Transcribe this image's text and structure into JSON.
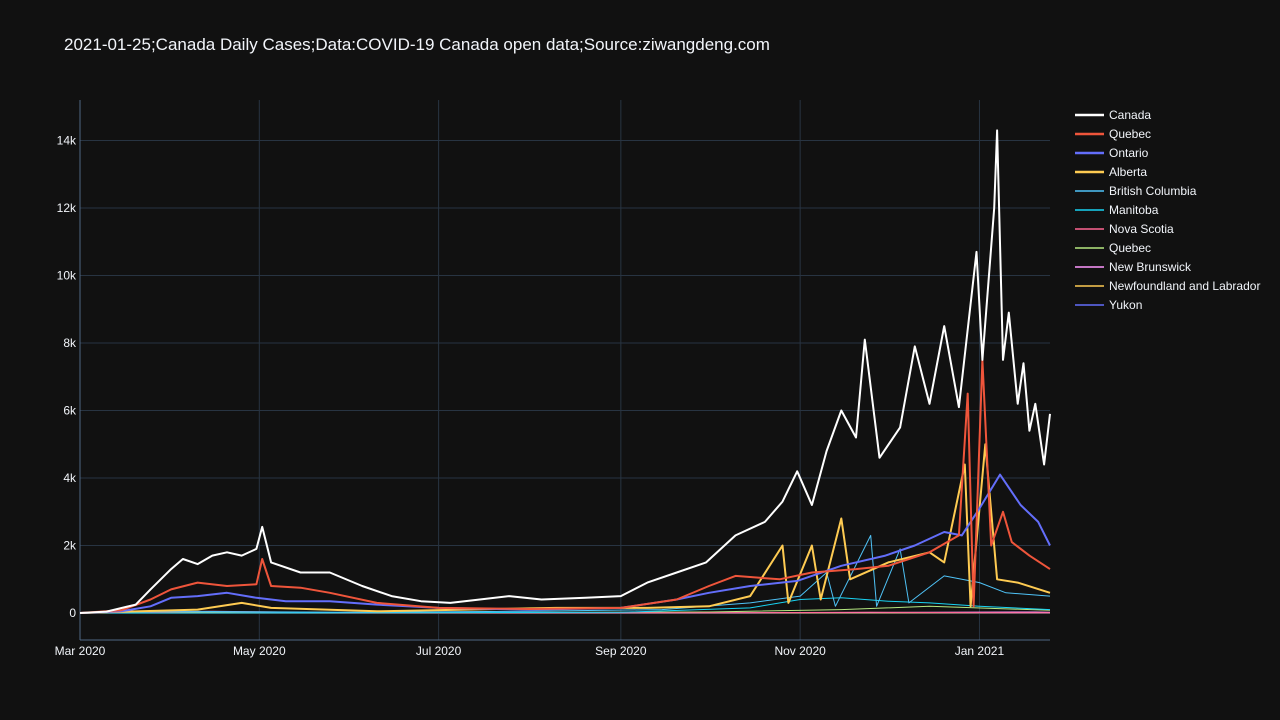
{
  "chart_data": {
    "type": "line",
    "title": "2021-01-25;Canada Daily Cases;Data:COVID-19 Canada open data;Source:ziwangdeng.com",
    "xlabel": "",
    "ylabel": "",
    "x_range": [
      "2020-03-01",
      "2021-01-25"
    ],
    "ylim": [
      -800,
      15200
    ],
    "x_ticks": [
      {
        "date": "2020-03-01",
        "label": "Mar 2020"
      },
      {
        "date": "2020-05-01",
        "label": "May 2020"
      },
      {
        "date": "2020-07-01",
        "label": "Jul 2020"
      },
      {
        "date": "2020-09-01",
        "label": "Sep 2020"
      },
      {
        "date": "2020-11-01",
        "label": "Nov 2020"
      },
      {
        "date": "2021-01-01",
        "label": "Jan 2021"
      }
    ],
    "y_ticks": [
      {
        "value": 0,
        "label": "0"
      },
      {
        "value": 2000,
        "label": "2k"
      },
      {
        "value": 4000,
        "label": "4k"
      },
      {
        "value": 6000,
        "label": "6k"
      },
      {
        "value": 8000,
        "label": "8k"
      },
      {
        "value": 10000,
        "label": "10k"
      },
      {
        "value": 12000,
        "label": "12k"
      },
      {
        "value": 14000,
        "label": "14k"
      }
    ],
    "grid": true,
    "legend_position": "right",
    "series": [
      {
        "name": "Canada",
        "color": "#ffffff",
        "width": 2,
        "points": [
          [
            "2020-03-01",
            0
          ],
          [
            "2020-03-10",
            40
          ],
          [
            "2020-03-20",
            250
          ],
          [
            "2020-03-25",
            700
          ],
          [
            "2020-04-01",
            1300
          ],
          [
            "2020-04-05",
            1600
          ],
          [
            "2020-04-10",
            1450
          ],
          [
            "2020-04-15",
            1700
          ],
          [
            "2020-04-20",
            1800
          ],
          [
            "2020-04-25",
            1700
          ],
          [
            "2020-04-30",
            1900
          ],
          [
            "2020-05-02",
            2550
          ],
          [
            "2020-05-05",
            1500
          ],
          [
            "2020-05-15",
            1200
          ],
          [
            "2020-05-25",
            1200
          ],
          [
            "2020-06-05",
            800
          ],
          [
            "2020-06-15",
            500
          ],
          [
            "2020-06-25",
            350
          ],
          [
            "2020-07-05",
            300
          ],
          [
            "2020-07-15",
            400
          ],
          [
            "2020-07-25",
            500
          ],
          [
            "2020-08-05",
            400
          ],
          [
            "2020-08-20",
            450
          ],
          [
            "2020-09-01",
            500
          ],
          [
            "2020-09-10",
            900
          ],
          [
            "2020-09-20",
            1200
          ],
          [
            "2020-09-30",
            1500
          ],
          [
            "2020-10-10",
            2300
          ],
          [
            "2020-10-20",
            2700
          ],
          [
            "2020-10-26",
            3300
          ],
          [
            "2020-10-31",
            4200
          ],
          [
            "2020-11-05",
            3200
          ],
          [
            "2020-11-10",
            4800
          ],
          [
            "2020-11-15",
            6000
          ],
          [
            "2020-11-20",
            5200
          ],
          [
            "2020-11-23",
            8100
          ],
          [
            "2020-11-28",
            4600
          ],
          [
            "2020-12-05",
            5500
          ],
          [
            "2020-12-10",
            7900
          ],
          [
            "2020-12-15",
            6200
          ],
          [
            "2020-12-20",
            8500
          ],
          [
            "2020-12-25",
            6100
          ],
          [
            "2020-12-31",
            10700
          ],
          [
            "2021-01-02",
            7500
          ],
          [
            "2021-01-06",
            12000
          ],
          [
            "2021-01-07",
            14300
          ],
          [
            "2021-01-09",
            7500
          ],
          [
            "2021-01-11",
            8900
          ],
          [
            "2021-01-14",
            6200
          ],
          [
            "2021-01-16",
            7400
          ],
          [
            "2021-01-18",
            5400
          ],
          [
            "2021-01-20",
            6200
          ],
          [
            "2021-01-23",
            4400
          ],
          [
            "2021-01-25",
            5900
          ]
        ]
      },
      {
        "name": "Quebec",
        "color": "#ef553b",
        "width": 2,
        "points": [
          [
            "2020-03-01",
            0
          ],
          [
            "2020-03-15",
            80
          ],
          [
            "2020-03-25",
            400
          ],
          [
            "2020-04-01",
            700
          ],
          [
            "2020-04-10",
            900
          ],
          [
            "2020-04-20",
            800
          ],
          [
            "2020-04-30",
            850
          ],
          [
            "2020-05-02",
            1600
          ],
          [
            "2020-05-05",
            800
          ],
          [
            "2020-05-15",
            750
          ],
          [
            "2020-05-25",
            600
          ],
          [
            "2020-06-10",
            300
          ],
          [
            "2020-07-01",
            150
          ],
          [
            "2020-08-01",
            120
          ],
          [
            "2020-09-01",
            150
          ],
          [
            "2020-09-20",
            400
          ],
          [
            "2020-10-01",
            800
          ],
          [
            "2020-10-10",
            1100
          ],
          [
            "2020-10-25",
            1000
          ],
          [
            "2020-11-05",
            1200
          ],
          [
            "2020-11-20",
            1300
          ],
          [
            "2020-12-01",
            1400
          ],
          [
            "2020-12-15",
            1800
          ],
          [
            "2020-12-25",
            2300
          ],
          [
            "2020-12-28",
            6500
          ],
          [
            "2020-12-30",
            200
          ],
          [
            "2021-01-02",
            7500
          ],
          [
            "2021-01-05",
            2000
          ],
          [
            "2021-01-09",
            3000
          ],
          [
            "2021-01-12",
            2100
          ],
          [
            "2021-01-18",
            1700
          ],
          [
            "2021-01-25",
            1300
          ]
        ]
      },
      {
        "name": "Ontario",
        "color": "#636efa",
        "width": 2,
        "points": [
          [
            "2020-03-01",
            0
          ],
          [
            "2020-03-15",
            50
          ],
          [
            "2020-03-25",
            200
          ],
          [
            "2020-04-01",
            450
          ],
          [
            "2020-04-10",
            500
          ],
          [
            "2020-04-20",
            600
          ],
          [
            "2020-04-30",
            450
          ],
          [
            "2020-05-10",
            350
          ],
          [
            "2020-05-25",
            350
          ],
          [
            "2020-06-10",
            250
          ],
          [
            "2020-07-01",
            150
          ],
          [
            "2020-08-01",
            100
          ],
          [
            "2020-09-01",
            150
          ],
          [
            "2020-09-20",
            400
          ],
          [
            "2020-10-01",
            600
          ],
          [
            "2020-10-15",
            800
          ],
          [
            "2020-10-31",
            950
          ],
          [
            "2020-11-15",
            1400
          ],
          [
            "2020-11-30",
            1700
          ],
          [
            "2020-12-10",
            2000
          ],
          [
            "2020-12-20",
            2400
          ],
          [
            "2020-12-26",
            2300
          ],
          [
            "2021-01-01",
            3100
          ],
          [
            "2021-01-08",
            4100
          ],
          [
            "2021-01-15",
            3200
          ],
          [
            "2021-01-21",
            2700
          ],
          [
            "2021-01-25",
            2000
          ]
        ]
      },
      {
        "name": "Alberta",
        "color": "#fecb52",
        "width": 2,
        "points": [
          [
            "2020-03-01",
            0
          ],
          [
            "2020-04-10",
            100
          ],
          [
            "2020-04-25",
            300
          ],
          [
            "2020-05-05",
            150
          ],
          [
            "2020-06-10",
            50
          ],
          [
            "2020-07-10",
            100
          ],
          [
            "2020-08-10",
            150
          ],
          [
            "2020-09-10",
            150
          ],
          [
            "2020-10-01",
            200
          ],
          [
            "2020-10-15",
            500
          ],
          [
            "2020-10-26",
            2000
          ],
          [
            "2020-10-28",
            300
          ],
          [
            "2020-11-05",
            2000
          ],
          [
            "2020-11-08",
            400
          ],
          [
            "2020-11-15",
            2800
          ],
          [
            "2020-11-18",
            1000
          ],
          [
            "2020-12-01",
            1500
          ],
          [
            "2020-12-15",
            1800
          ],
          [
            "2020-12-20",
            1500
          ],
          [
            "2020-12-27",
            4400
          ],
          [
            "2020-12-29",
            200
          ],
          [
            "2021-01-03",
            5000
          ],
          [
            "2021-01-07",
            1000
          ],
          [
            "2021-01-14",
            900
          ],
          [
            "2021-01-25",
            600
          ]
        ]
      },
      {
        "name": "British Columbia",
        "color": "#4fc3f7",
        "width": 1,
        "points": [
          [
            "2020-03-01",
            0
          ],
          [
            "2020-04-01",
            50
          ],
          [
            "2020-06-01",
            20
          ],
          [
            "2020-08-01",
            50
          ],
          [
            "2020-09-15",
            100
          ],
          [
            "2020-10-15",
            300
          ],
          [
            "2020-11-01",
            500
          ],
          [
            "2020-11-10",
            1200
          ],
          [
            "2020-11-13",
            200
          ],
          [
            "2020-11-25",
            2300
          ],
          [
            "2020-11-27",
            200
          ],
          [
            "2020-12-05",
            1900
          ],
          [
            "2020-12-08",
            300
          ],
          [
            "2020-12-20",
            1100
          ],
          [
            "2021-01-01",
            900
          ],
          [
            "2021-01-10",
            600
          ],
          [
            "2021-01-25",
            500
          ]
        ]
      },
      {
        "name": "Manitoba",
        "color": "#19d3f3",
        "width": 1,
        "points": [
          [
            "2020-03-01",
            0
          ],
          [
            "2020-06-01",
            5
          ],
          [
            "2020-09-01",
            20
          ],
          [
            "2020-10-15",
            150
          ],
          [
            "2020-11-01",
            400
          ],
          [
            "2020-11-15",
            450
          ],
          [
            "2020-12-01",
            350
          ],
          [
            "2020-12-15",
            300
          ],
          [
            "2021-01-01",
            200
          ],
          [
            "2021-01-25",
            100
          ]
        ]
      },
      {
        "name": "Nova Scotia",
        "color": "#ff6692",
        "width": 1,
        "points": [
          [
            "2020-03-01",
            0
          ],
          [
            "2020-04-15",
            50
          ],
          [
            "2020-06-01",
            5
          ],
          [
            "2020-10-01",
            5
          ],
          [
            "2020-11-25",
            20
          ],
          [
            "2021-01-25",
            5
          ]
        ]
      },
      {
        "name": "Quebec",
        "color": "#b6e880",
        "width": 1,
        "points": [
          [
            "2020-03-01",
            0
          ],
          [
            "2020-06-01",
            5
          ],
          [
            "2020-10-01",
            30
          ],
          [
            "2020-11-15",
            100
          ],
          [
            "2020-12-15",
            200
          ],
          [
            "2021-01-25",
            80
          ]
        ]
      },
      {
        "name": "New Brunswick",
        "color": "#ff97ff",
        "width": 1,
        "points": [
          [
            "2020-03-01",
            0
          ],
          [
            "2020-06-01",
            5
          ],
          [
            "2020-10-15",
            10
          ],
          [
            "2021-01-20",
            30
          ],
          [
            "2021-01-25",
            20
          ]
        ]
      },
      {
        "name": "Newfoundland and Labrador",
        "color": "#fecb52",
        "width": 1,
        "points": [
          [
            "2020-03-01",
            0
          ],
          [
            "2020-04-01",
            20
          ],
          [
            "2020-06-01",
            0
          ],
          [
            "2021-01-25",
            5
          ]
        ]
      },
      {
        "name": "Yukon",
        "color": "#636efa",
        "width": 1,
        "points": [
          [
            "2020-03-01",
            0
          ],
          [
            "2021-01-25",
            2
          ]
        ]
      }
    ]
  }
}
